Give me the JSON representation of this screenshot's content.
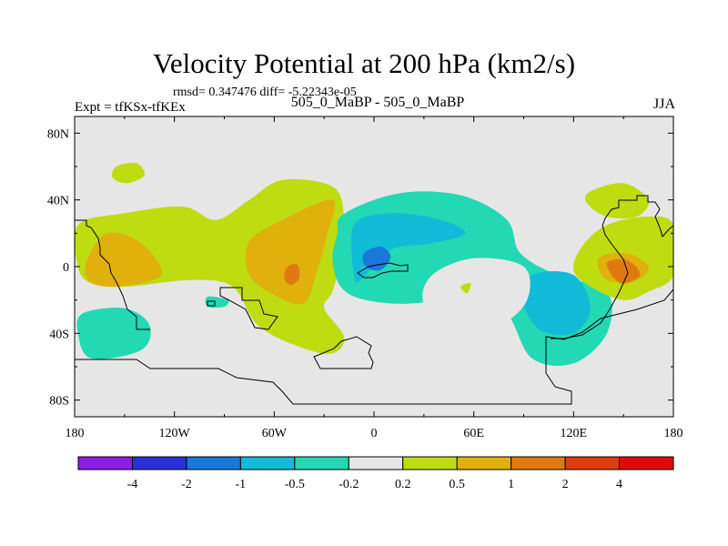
{
  "chart_data": {
    "type": "heatmap",
    "title": "Velocity Potential at 200 hPa (km2/s)",
    "stats": "rmsd= 0.347476 diff= -5.22343e-05",
    "left_label": "Expt = tfKSx-tfKEx",
    "center_label": "505_0_MaBP - 505_0_MaBP",
    "right_label": "JJA",
    "x_axis": {
      "range": [
        -180,
        180
      ],
      "ticks": [
        "180",
        "120W",
        "60W",
        "0",
        "60E",
        "120E",
        "180"
      ],
      "tick_values": [
        -180,
        -120,
        -60,
        0,
        60,
        120,
        180
      ]
    },
    "y_axis": {
      "range": [
        -90,
        90
      ],
      "ticks": [
        "80N",
        "40N",
        "0",
        "40S",
        "80S"
      ],
      "tick_values": [
        80,
        40,
        0,
        -40,
        -80
      ]
    },
    "colorbar": {
      "colors": [
        "#8a1ee6",
        "#2a30d8",
        "#1a78d8",
        "#10bcd8",
        "#22d9b4",
        "#e6e6e6",
        "#bedc10",
        "#e0b00c",
        "#e07a10",
        "#e03c0c",
        "#e00a0a"
      ],
      "labels": [
        "-4",
        "-2",
        "-1",
        "-0.5",
        "-0.2",
        "0.2",
        "0.5",
        "1",
        "2",
        "4"
      ],
      "boundaries": [
        -4,
        -2,
        -1,
        -0.5,
        -0.2,
        0.2,
        0.5,
        1,
        2,
        4
      ]
    },
    "regions": [
      {
        "level": "0.5",
        "color": "#bedc10",
        "lonlat": [
          [
            -155,
            60
          ],
          [
            -143,
            62
          ],
          [
            -138,
            55
          ],
          [
            -148,
            50
          ],
          [
            -157,
            53
          ]
        ]
      },
      {
        "level": "0.5",
        "color": "#bedc10",
        "lonlat": [
          [
            -178,
            25
          ],
          [
            -150,
            32
          ],
          [
            -115,
            36
          ],
          [
            -95,
            28
          ],
          [
            -75,
            40
          ],
          [
            -55,
            52
          ],
          [
            -25,
            48
          ],
          [
            -18,
            30
          ],
          [
            -20,
            5
          ],
          [
            -25,
            -15
          ],
          [
            -30,
            -25
          ],
          [
            -18,
            -42
          ],
          [
            -25,
            -52
          ],
          [
            -45,
            -48
          ],
          [
            -70,
            -35
          ],
          [
            -85,
            -12
          ],
          [
            -110,
            -8
          ],
          [
            -150,
            -12
          ],
          [
            -170,
            -10
          ],
          [
            -178,
            0
          ]
        ]
      },
      {
        "level": "1",
        "color": "#e0b00c",
        "lonlat": [
          [
            -172,
            5
          ],
          [
            -160,
            20
          ],
          [
            -140,
            14
          ],
          [
            -128,
            -5
          ],
          [
            -155,
            -12
          ],
          [
            -172,
            -8
          ]
        ]
      },
      {
        "level": "1",
        "color": "#e0b00c",
        "lonlat": [
          [
            -75,
            15
          ],
          [
            -55,
            28
          ],
          [
            -25,
            40
          ],
          [
            -28,
            20
          ],
          [
            -35,
            -5
          ],
          [
            -42,
            -22
          ],
          [
            -58,
            -18
          ],
          [
            -75,
            -5
          ]
        ]
      },
      {
        "level": "2",
        "color": "#e07a10",
        "lonlat": [
          [
            -52,
            0
          ],
          [
            -46,
            1
          ],
          [
            -45,
            -7
          ],
          [
            -50,
            -11
          ],
          [
            -54,
            -7
          ]
        ]
      },
      {
        "level": "-0.2",
        "color": "#22d9b4",
        "lonlat": [
          [
            -20,
            30
          ],
          [
            0,
            40
          ],
          [
            25,
            45
          ],
          [
            55,
            42
          ],
          [
            80,
            28
          ],
          [
            88,
            8
          ],
          [
            110,
            -5
          ],
          [
            140,
            -15
          ],
          [
            140,
            -40
          ],
          [
            120,
            -58
          ],
          [
            95,
            -55
          ],
          [
            80,
            -28
          ],
          [
            60,
            -15
          ],
          [
            25,
            -22
          ],
          [
            -5,
            -20
          ],
          [
            -20,
            -12
          ],
          [
            -25,
            5
          ],
          [
            -22,
            20
          ]
        ]
      },
      {
        "level": "-0.5",
        "color": "#10bcd8",
        "lonlat": [
          [
            -12,
            25
          ],
          [
            10,
            32
          ],
          [
            40,
            28
          ],
          [
            55,
            20
          ],
          [
            35,
            14
          ],
          [
            10,
            10
          ],
          [
            -8,
            -8
          ],
          [
            -12,
            -5
          ]
        ]
      },
      {
        "level": "-0.5",
        "color": "#10bcd8",
        "lonlat": [
          [
            95,
            -5
          ],
          [
            120,
            -5
          ],
          [
            130,
            -25
          ],
          [
            120,
            -40
          ],
          [
            100,
            -38
          ],
          [
            90,
            -22
          ]
        ]
      },
      {
        "level": "-1",
        "color": "#1a78d8",
        "lonlat": [
          [
            -6,
            8
          ],
          [
            4,
            12
          ],
          [
            10,
            6
          ],
          [
            4,
            -2
          ],
          [
            -5,
            0
          ]
        ]
      },
      {
        "level": "0.2",
        "color": "#e6e6e6",
        "lonlat": [
          [
            35,
            -5
          ],
          [
            60,
            5
          ],
          [
            90,
            0
          ],
          [
            92,
            -20
          ],
          [
            75,
            -35
          ],
          [
            50,
            -35
          ],
          [
            30,
            -22
          ]
        ]
      },
      {
        "level": "0.5",
        "color": "#bedc10",
        "lonlat": [
          [
            52,
            -12
          ],
          [
            58,
            -10
          ],
          [
            56,
            -16
          ]
        ]
      },
      {
        "level": "-0.2",
        "color": "#22d9b4",
        "lonlat": [
          [
            -175,
            -28
          ],
          [
            -150,
            -25
          ],
          [
            -135,
            -35
          ],
          [
            -140,
            -50
          ],
          [
            -170,
            -55
          ],
          [
            -178,
            -40
          ]
        ]
      },
      {
        "level": "-0.2",
        "color": "#22d9b4",
        "lonlat": [
          [
            -100,
            -18
          ],
          [
            -88,
            -20
          ],
          [
            -90,
            -24
          ],
          [
            -100,
            -24
          ]
        ]
      },
      {
        "level": "0.5",
        "color": "#bedc10",
        "lonlat": [
          [
            130,
            45
          ],
          [
            150,
            50
          ],
          [
            165,
            40
          ],
          [
            158,
            30
          ],
          [
            140,
            30
          ],
          [
            128,
            38
          ]
        ]
      },
      {
        "level": "0.5",
        "color": "#bedc10",
        "lonlat": [
          [
            125,
            12
          ],
          [
            140,
            25
          ],
          [
            165,
            30
          ],
          [
            180,
            25
          ],
          [
            180,
            -5
          ],
          [
            165,
            -15
          ],
          [
            150,
            -20
          ],
          [
            130,
            -12
          ],
          [
            120,
            -2
          ]
        ]
      },
      {
        "level": "1",
        "color": "#e0b00c",
        "lonlat": [
          [
            135,
            5
          ],
          [
            152,
            8
          ],
          [
            165,
            0
          ],
          [
            158,
            -8
          ],
          [
            140,
            -8
          ]
        ]
      },
      {
        "level": "2",
        "color": "#e07a10",
        "lonlat": [
          [
            140,
            2
          ],
          [
            152,
            4
          ],
          [
            160,
            -5
          ],
          [
            148,
            -10
          ]
        ]
      }
    ]
  }
}
